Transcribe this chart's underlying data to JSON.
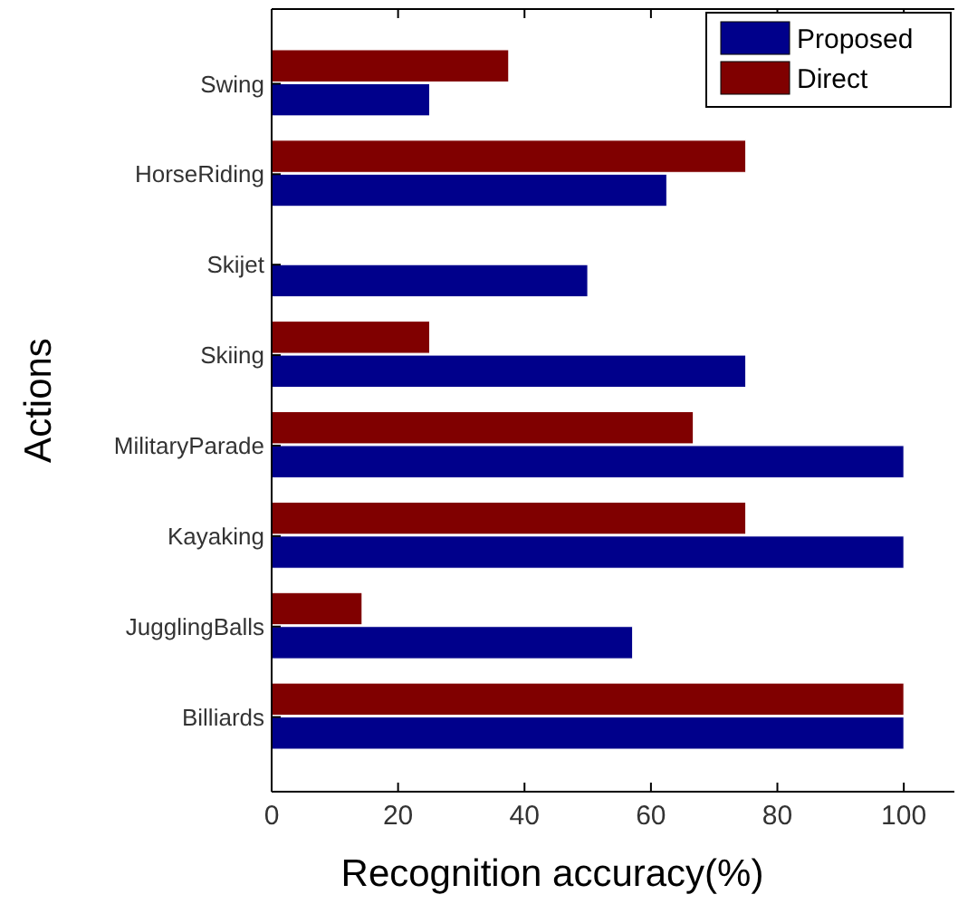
{
  "chart_data": {
    "type": "bar",
    "orientation": "horizontal",
    "xlabel": "Recognition accuracy(%)",
    "ylabel": "Actions",
    "categories": [
      "Swing",
      "HorseRiding",
      "Skijet",
      "Skiing",
      "MilitaryParade",
      "Kayaking",
      "JugglingBalls",
      "Billiards"
    ],
    "series": [
      {
        "name": "Proposed",
        "color": "#00008b",
        "values": [
          25,
          62.5,
          50,
          75,
          100,
          100,
          57.1,
          100
        ]
      },
      {
        "name": "Direct",
        "color": "#800000",
        "values": [
          37.5,
          75,
          0,
          25,
          66.7,
          75,
          14.3,
          100
        ]
      }
    ],
    "xlim": [
      0,
      108
    ],
    "xticks": [
      0,
      20,
      40,
      60,
      80,
      100
    ],
    "grid": false,
    "legend": "top right"
  }
}
